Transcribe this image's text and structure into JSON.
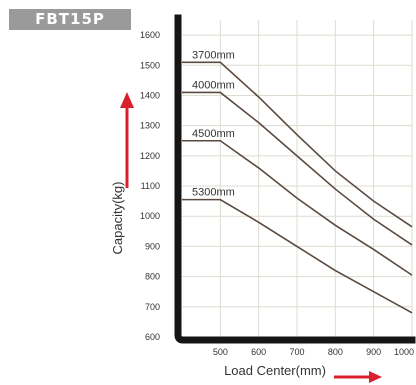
{
  "badge": {
    "label": "FBT15P"
  },
  "colors": {
    "accent": "#d8202c",
    "curve": "#5a4a40",
    "grid": "#dcdcd0",
    "axis": "#151515",
    "text": "#333333"
  },
  "chart_data": {
    "type": "line",
    "title": "",
    "xlabel": "Load Center(mm)",
    "ylabel": "Capacity(kg)",
    "xlim": [
      400,
      1000
    ],
    "ylim": [
      600,
      1650
    ],
    "x_ticks": [
      500,
      600,
      700,
      800,
      900,
      1000
    ],
    "y_ticks": [
      600,
      700,
      800,
      900,
      1000,
      1100,
      1200,
      1300,
      1400,
      1500,
      1600
    ],
    "grid": true,
    "legend": "none",
    "series": [
      {
        "name": "3700mm",
        "x": [
          400,
          500,
          600,
          700,
          800,
          900,
          1000
        ],
        "y": [
          1510,
          1510,
          1395,
          1270,
          1150,
          1050,
          965
        ]
      },
      {
        "name": "4000mm",
        "x": [
          400,
          500,
          600,
          700,
          800,
          900,
          1000
        ],
        "y": [
          1410,
          1410,
          1310,
          1200,
          1090,
          990,
          905
        ]
      },
      {
        "name": "4500mm",
        "x": [
          400,
          500,
          600,
          700,
          800,
          900,
          1000
        ],
        "y": [
          1250,
          1250,
          1160,
          1060,
          970,
          890,
          805
        ]
      },
      {
        "name": "5300mm",
        "x": [
          400,
          500,
          600,
          700,
          800,
          900,
          1000
        ],
        "y": [
          1055,
          1055,
          980,
          900,
          820,
          750,
          680
        ]
      }
    ]
  }
}
